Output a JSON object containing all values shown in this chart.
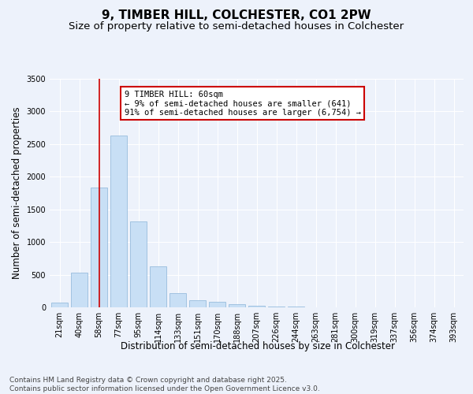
{
  "title": "9, TIMBER HILL, COLCHESTER, CO1 2PW",
  "subtitle": "Size of property relative to semi-detached houses in Colchester",
  "xlabel": "Distribution of semi-detached houses by size in Colchester",
  "ylabel": "Number of semi-detached properties",
  "categories": [
    "21sqm",
    "40sqm",
    "58sqm",
    "77sqm",
    "95sqm",
    "114sqm",
    "133sqm",
    "151sqm",
    "170sqm",
    "188sqm",
    "207sqm",
    "226sqm",
    "244sqm",
    "263sqm",
    "281sqm",
    "300sqm",
    "319sqm",
    "337sqm",
    "356sqm",
    "374sqm",
    "393sqm"
  ],
  "values": [
    75,
    530,
    1840,
    2630,
    1310,
    630,
    220,
    110,
    80,
    50,
    30,
    15,
    8,
    4,
    3,
    2,
    1,
    1,
    0,
    0,
    0
  ],
  "bar_color": "#c8dff5",
  "bar_edge_color": "#8ab4d8",
  "vline_x": 2.0,
  "vline_color": "#cc0000",
  "annotation_text": "9 TIMBER HILL: 60sqm\n← 9% of semi-detached houses are smaller (641)\n91% of semi-detached houses are larger (6,754) →",
  "annotation_box_edgecolor": "#cc0000",
  "ylim_max": 3500,
  "yticks": [
    0,
    500,
    1000,
    1500,
    2000,
    2500,
    3000,
    3500
  ],
  "bg_color": "#edf2fb",
  "grid_color": "#ffffff",
  "title_fontsize": 11,
  "subtitle_fontsize": 9.5,
  "axis_label_fontsize": 8.5,
  "tick_fontsize": 7,
  "annot_fontsize": 7.5,
  "footer_fontsize": 6.5,
  "footer_line1": "Contains HM Land Registry data © Crown copyright and database right 2025.",
  "footer_line2": "Contains public sector information licensed under the Open Government Licence v3.0."
}
